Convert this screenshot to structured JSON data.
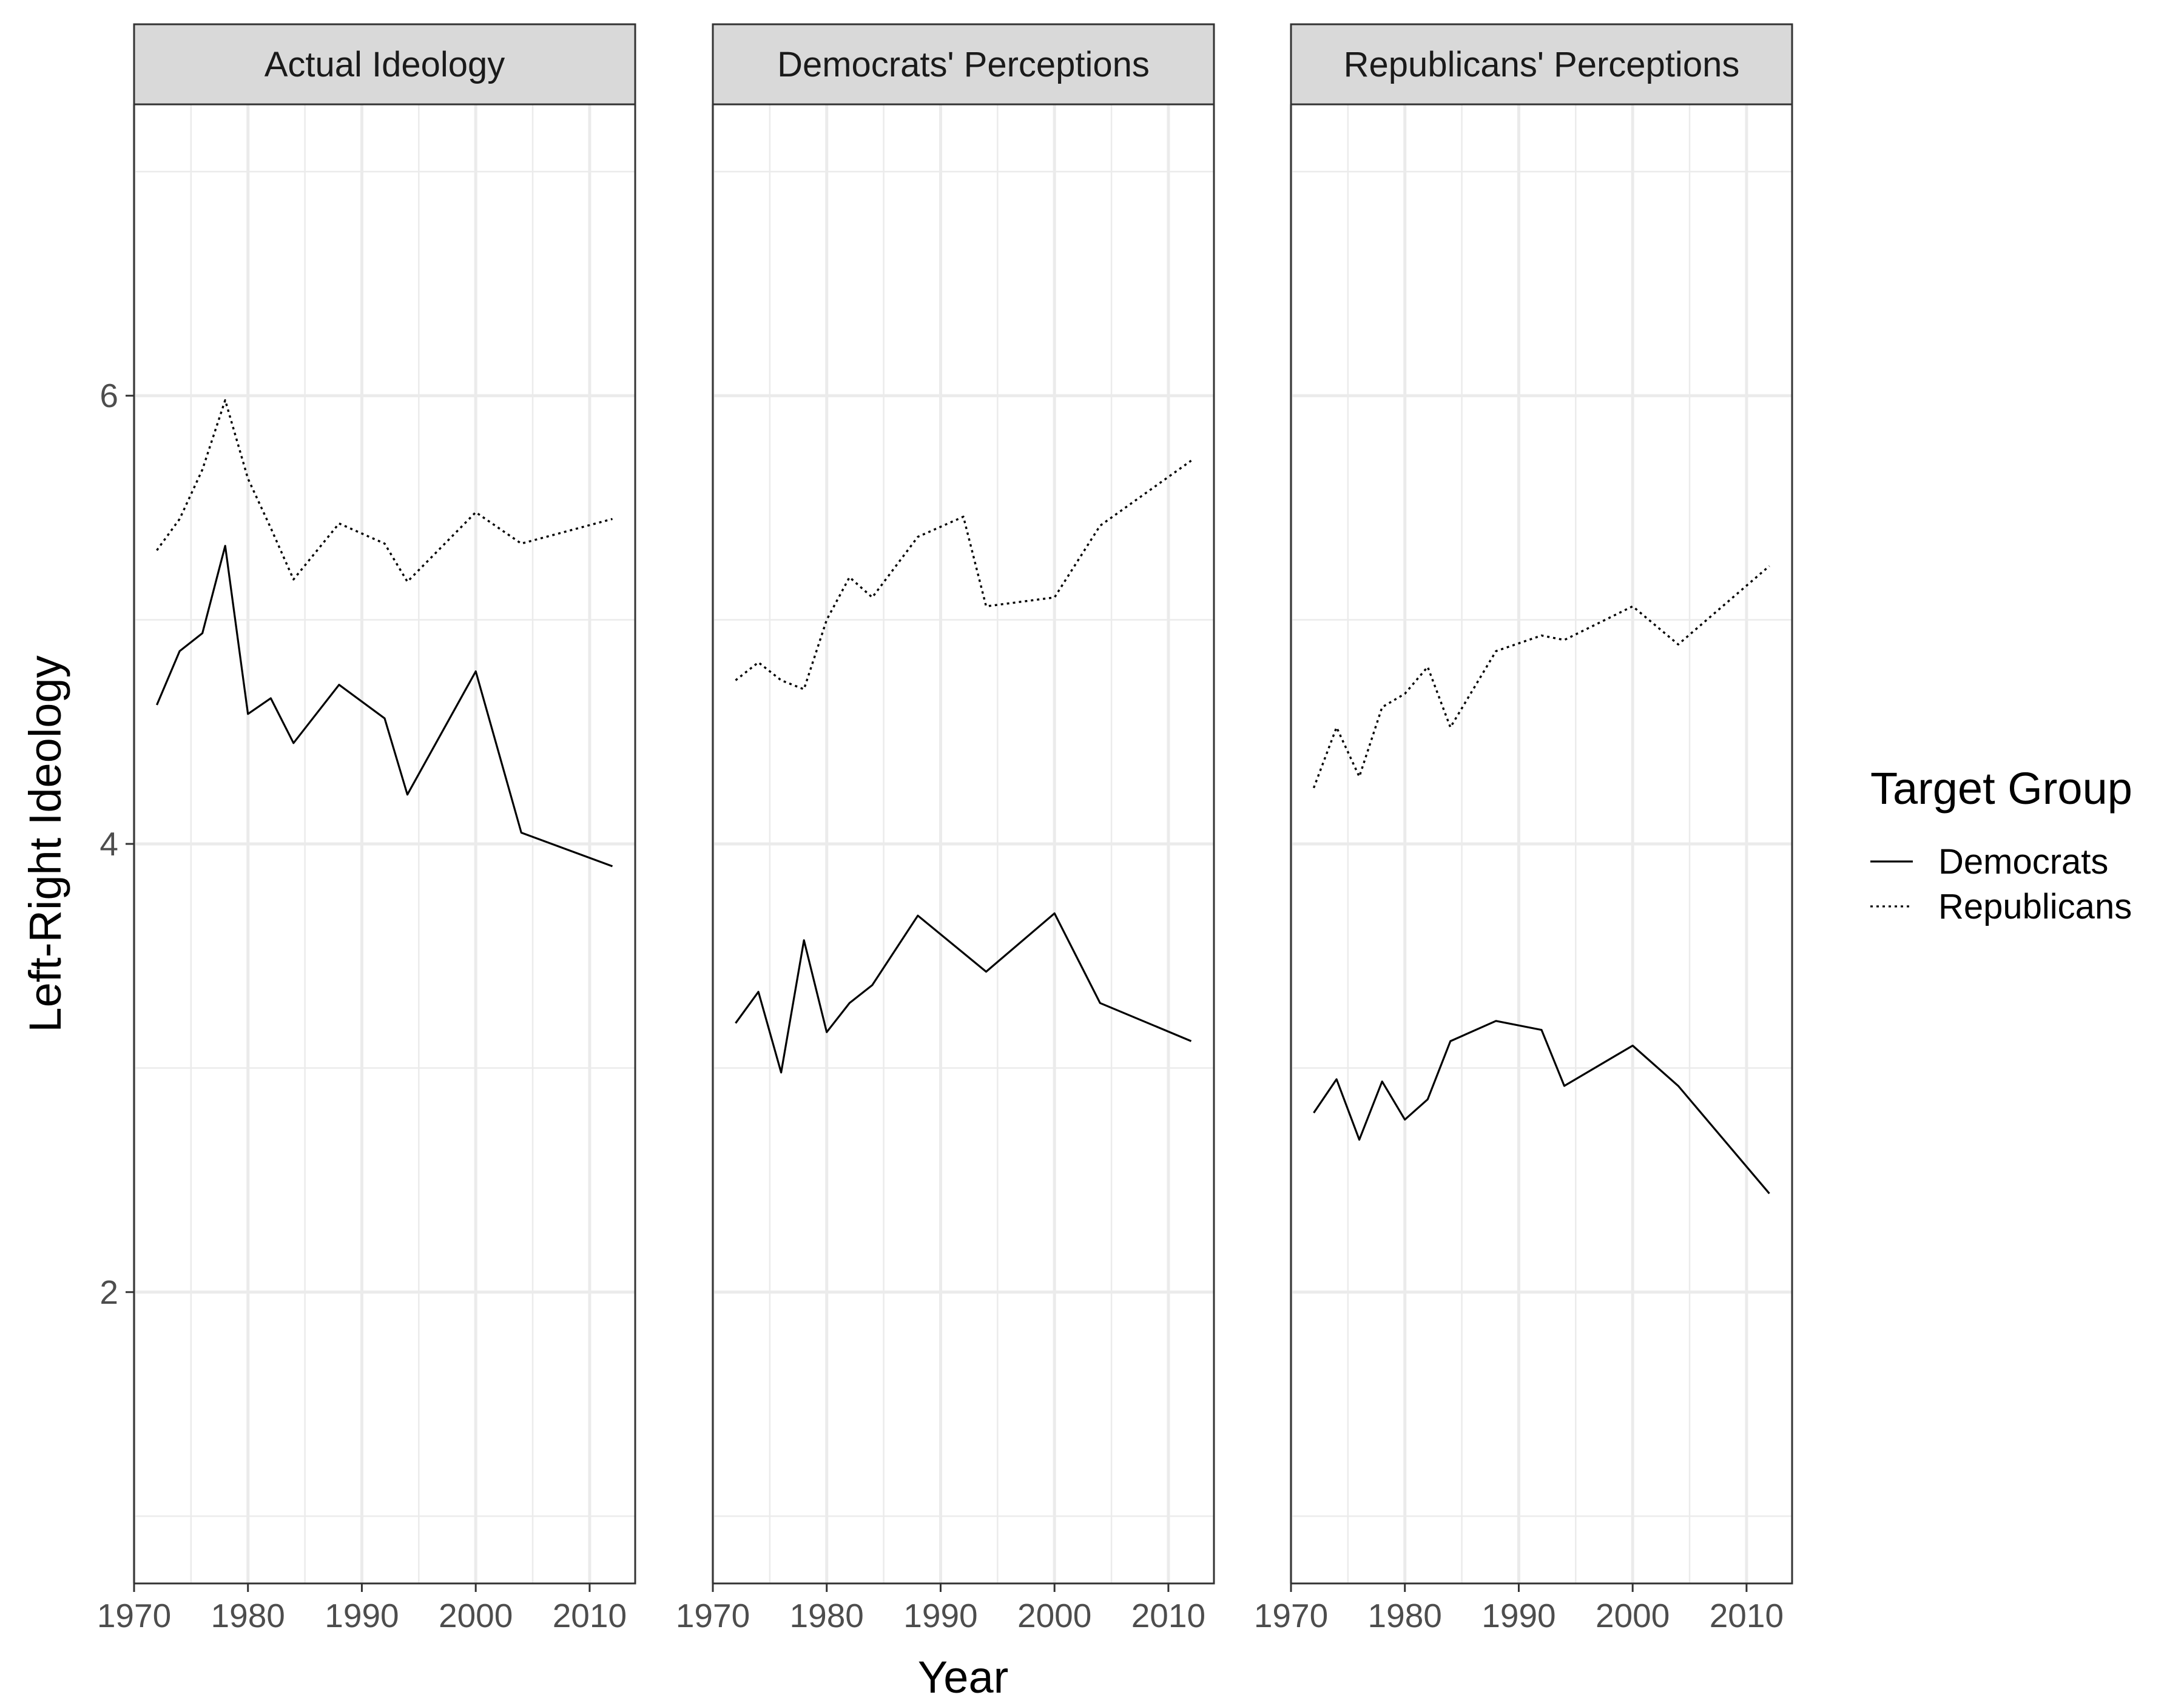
{
  "chart_data": {
    "type": "line",
    "xlabel": "Year",
    "ylabel": "Left-Right Ideology",
    "xlim": [
      1970,
      2014
    ],
    "ylim": [
      0.7,
      7.3
    ],
    "x_ticks": [
      1970,
      1980,
      1990,
      2000,
      2010
    ],
    "y_ticks": [
      2,
      4,
      6
    ],
    "grid": true,
    "legend": {
      "title": "Target Group",
      "position": "right",
      "items": [
        {
          "label": "Democrats",
          "linetype": "solid"
        },
        {
          "label": "Republicans",
          "linetype": "dotted"
        }
      ]
    },
    "panels": [
      {
        "title": "Actual Ideology",
        "series": [
          {
            "name": "Democrats",
            "linetype": "solid",
            "x": [
              1972,
              1974,
              1976,
              1978,
              1980,
              1982,
              1984,
              1988,
              1992,
              1994,
              2000,
              2004,
              2012
            ],
            "y": [
              4.62,
              4.86,
              4.94,
              5.33,
              4.58,
              4.65,
              4.45,
              4.71,
              4.56,
              4.22,
              4.77,
              4.05,
              3.9
            ]
          },
          {
            "name": "Republicans",
            "linetype": "dotted",
            "x": [
              1972,
              1974,
              1976,
              1978,
              1980,
              1982,
              1984,
              1988,
              1992,
              1994,
              2000,
              2004,
              2012
            ],
            "y": [
              5.31,
              5.45,
              5.67,
              5.98,
              5.63,
              5.41,
              5.18,
              5.43,
              5.34,
              5.17,
              5.48,
              5.34,
              5.45
            ]
          }
        ]
      },
      {
        "title": "Democrats' Perceptions",
        "series": [
          {
            "name": "Democrats",
            "linetype": "solid",
            "x": [
              1972,
              1974,
              1976,
              1978,
              1980,
              1982,
              1984,
              1988,
              1994,
              2000,
              2004,
              2012
            ],
            "y": [
              3.2,
              3.34,
              2.98,
              3.57,
              3.16,
              3.29,
              3.37,
              3.68,
              3.43,
              3.69,
              3.29,
              3.12
            ]
          },
          {
            "name": "Republicans",
            "linetype": "dotted",
            "x": [
              1972,
              1974,
              1976,
              1978,
              1980,
              1982,
              1984,
              1988,
              1992,
              1994,
              2000,
              2004,
              2012
            ],
            "y": [
              4.73,
              4.81,
              4.73,
              4.69,
              5.0,
              5.19,
              5.1,
              5.37,
              5.46,
              5.06,
              5.1,
              5.42,
              5.71
            ]
          }
        ]
      },
      {
        "title": "Republicans' Perceptions",
        "series": [
          {
            "name": "Democrats",
            "linetype": "solid",
            "x": [
              1972,
              1974,
              1976,
              1978,
              1980,
              1982,
              1984,
              1988,
              1992,
              1994,
              2000,
              2004,
              2012
            ],
            "y": [
              2.8,
              2.95,
              2.68,
              2.94,
              2.77,
              2.86,
              3.12,
              3.21,
              3.17,
              2.92,
              3.1,
              2.92,
              2.44
            ]
          },
          {
            "name": "Republicans",
            "linetype": "dotted",
            "x": [
              1972,
              1974,
              1976,
              1978,
              1980,
              1982,
              1984,
              1988,
              1992,
              1994,
              2000,
              2004,
              2012
            ],
            "y": [
              4.25,
              4.52,
              4.3,
              4.61,
              4.67,
              4.79,
              4.52,
              4.86,
              4.93,
              4.91,
              5.06,
              4.89,
              5.24
            ]
          }
        ]
      }
    ]
  }
}
